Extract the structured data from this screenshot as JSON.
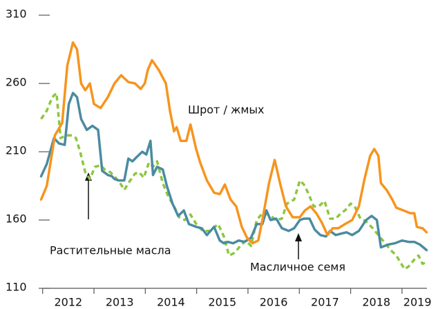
{
  "chart_data": {
    "type": "line",
    "ylim": [
      110,
      310
    ],
    "yticks": [
      110,
      160,
      210,
      260,
      310
    ],
    "xlim": [
      2011.95,
      2019.54
    ],
    "xticks": [
      {
        "value": 2012.5,
        "label": "2012"
      },
      {
        "value": 2013.5,
        "label": "2013"
      },
      {
        "value": 2014.5,
        "label": "2014"
      },
      {
        "value": 2015.5,
        "label": "2015"
      },
      {
        "value": 2016.5,
        "label": "2016"
      },
      {
        "value": 2017.5,
        "label": "2017"
      },
      {
        "value": 2018.5,
        "label": "2018"
      },
      {
        "value": 2019.3,
        "label": "2019"
      }
    ],
    "xtick_marks": [
      2012,
      2013,
      2014,
      2015,
      2016,
      2017,
      2018,
      2019
    ],
    "annotations": [
      "Шрот / жмых",
      "Растительные масла",
      "Масличное семя"
    ],
    "series": [
      {
        "color": "#f7941d",
        "dashed": false,
        "x": [
          2011.97,
          2012.08,
          2012.24,
          2012.38,
          2012.48,
          2012.59,
          2012.67,
          2012.75,
          2012.83,
          2012.92,
          2013.0,
          2013.13,
          2013.27,
          2013.4,
          2013.53,
          2013.67,
          2013.8,
          2013.91,
          2013.99,
          2014.05,
          2014.13,
          2014.26,
          2014.4,
          2014.48,
          2014.56,
          2014.61,
          2014.69,
          2014.8,
          2014.88,
          2014.99,
          2015.07,
          2015.2,
          2015.34,
          2015.45,
          2015.55,
          2015.66,
          2015.77,
          2015.88,
          2015.98,
          2016.09,
          2016.2,
          2016.28,
          2016.41,
          2016.52,
          2016.63,
          2016.74,
          2016.87,
          2017.01,
          2017.11,
          2017.22,
          2017.33,
          2017.44,
          2017.55,
          2017.65,
          2017.76,
          2017.89,
          2018.03,
          2018.16,
          2018.27,
          2018.38,
          2018.46,
          2018.54,
          2018.59,
          2018.7,
          2018.81,
          2018.89,
          2019.03,
          2019.16,
          2019.24,
          2019.29,
          2019.4,
          2019.48
        ],
        "values": [
          175,
          185,
          222,
          231,
          273,
          290,
          285,
          260,
          255,
          260,
          245,
          242,
          250,
          260,
          266,
          261,
          260,
          256,
          260,
          270,
          277,
          270,
          260,
          240,
          225,
          228,
          218,
          218,
          230,
          212,
          202,
          189,
          180,
          179,
          186,
          175,
          170,
          155,
          147,
          143,
          145,
          160,
          187,
          204,
          186,
          170,
          162,
          162,
          167,
          170,
          165,
          158,
          149,
          154,
          154,
          157,
          160,
          170,
          190,
          207,
          212,
          207,
          187,
          182,
          175,
          169,
          167,
          165,
          165,
          155,
          154,
          151
        ]
      },
      {
        "color": "#4a8ba0",
        "dashed": false,
        "x": [
          2011.97,
          2012.08,
          2012.22,
          2012.32,
          2012.43,
          2012.51,
          2012.59,
          2012.67,
          2012.75,
          2012.86,
          2012.97,
          2013.08,
          2013.16,
          2013.27,
          2013.35,
          2013.4,
          2013.48,
          2013.59,
          2013.67,
          2013.75,
          2013.83,
          2013.94,
          2014.02,
          2014.1,
          2014.15,
          2014.23,
          2014.34,
          2014.42,
          2014.53,
          2014.64,
          2014.75,
          2014.85,
          2014.99,
          2015.1,
          2015.2,
          2015.34,
          2015.45,
          2015.53,
          2015.61,
          2015.71,
          2015.82,
          2015.93,
          2016.06,
          2016.17,
          2016.28,
          2016.36,
          2016.44,
          2016.55,
          2016.66,
          2016.79,
          2016.9,
          2017.01,
          2017.09,
          2017.2,
          2017.3,
          2017.41,
          2017.52,
          2017.6,
          2017.71,
          2017.81,
          2017.92,
          2018.03,
          2018.16,
          2018.3,
          2018.41,
          2018.51,
          2018.59,
          2018.73,
          2018.86,
          2019.0,
          2019.13,
          2019.24,
          2019.35,
          2019.48
        ],
        "values": [
          192,
          201,
          220,
          216,
          215,
          245,
          253,
          250,
          234,
          226,
          229,
          226,
          196,
          193,
          192,
          190,
          189,
          189,
          205,
          203,
          206,
          210,
          208,
          218,
          193,
          199,
          197,
          185,
          172,
          163,
          167,
          157,
          155,
          154,
          149,
          155,
          145,
          143,
          144,
          143,
          145,
          144,
          147,
          157,
          157,
          167,
          160,
          161,
          154,
          152,
          154,
          160,
          161,
          161,
          153,
          149,
          148,
          152,
          149,
          150,
          151,
          149,
          152,
          160,
          163,
          160,
          140,
          142,
          143,
          145,
          144,
          144,
          142,
          138
        ]
      },
      {
        "color": "#8dc63f",
        "dashed": true,
        "x": [
          2011.97,
          2012.08,
          2012.19,
          2012.27,
          2012.35,
          2012.46,
          2012.57,
          2012.65,
          2012.73,
          2012.83,
          2012.92,
          2013.02,
          2013.13,
          2013.21,
          2013.32,
          2013.4,
          2013.51,
          2013.59,
          2013.67,
          2013.8,
          2013.88,
          2013.97,
          2014.07,
          2014.15,
          2014.23,
          2014.34,
          2014.45,
          2014.56,
          2014.66,
          2014.77,
          2014.88,
          2015.01,
          2015.12,
          2015.26,
          2015.42,
          2015.53,
          2015.63,
          2015.74,
          2015.85,
          2015.96,
          2016.06,
          2016.17,
          2016.28,
          2016.41,
          2016.55,
          2016.66,
          2016.76,
          2016.9,
          2017.01,
          2017.09,
          2017.17,
          2017.28,
          2017.38,
          2017.49,
          2017.6,
          2017.71,
          2017.81,
          2017.89,
          2018.0,
          2018.08,
          2018.19,
          2018.3,
          2018.43,
          2018.54,
          2018.65,
          2018.78,
          2018.89,
          2018.97,
          2019.05,
          2019.13,
          2019.24,
          2019.32,
          2019.4,
          2019.48
        ],
        "values": [
          234,
          240,
          250,
          253,
          220,
          222,
          222,
          220,
          210,
          195,
          190,
          199,
          200,
          197,
          195,
          192,
          187,
          182,
          187,
          194,
          195,
          191,
          202,
          199,
          203,
          187,
          177,
          170,
          162,
          160,
          164,
          156,
          152,
          152,
          157,
          148,
          134,
          136,
          141,
          145,
          141,
          160,
          165,
          164,
          160,
          161,
          172,
          175,
          189,
          186,
          180,
          170,
          170,
          174,
          161,
          161,
          165,
          167,
          172,
          170,
          161,
          159,
          154,
          149,
          144,
          138,
          134,
          129,
          124,
          126,
          131,
          134,
          128,
          129
        ]
      }
    ]
  }
}
